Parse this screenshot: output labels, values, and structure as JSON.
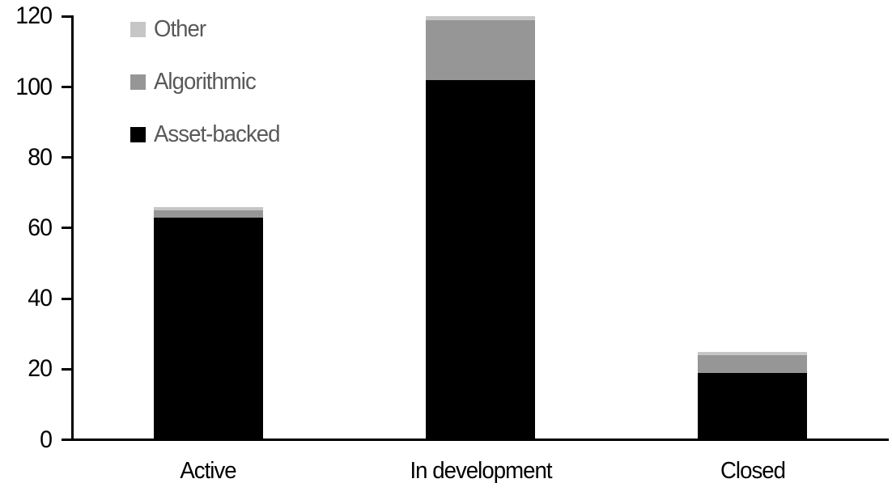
{
  "chart_data": {
    "type": "bar",
    "stacked": true,
    "title": "",
    "xlabel": "",
    "ylabel": "",
    "categories": [
      "Active",
      "In development",
      "Closed"
    ],
    "series": [
      {
        "name": "Other",
        "color": "#c6c6c6",
        "values": [
          1,
          1,
          1
        ]
      },
      {
        "name": "Algorithmic",
        "color": "#969696",
        "values": [
          2,
          17,
          5
        ]
      },
      {
        "name": "Asset-backed",
        "color": "#000000",
        "values": [
          63,
          102,
          19
        ]
      }
    ],
    "stack_order_bottom_to_top": [
      "Asset-backed",
      "Algorithmic",
      "Other"
    ],
    "totals": [
      66,
      120,
      25
    ],
    "ylim": [
      0,
      120
    ],
    "yticks": [
      0,
      20,
      40,
      60,
      80,
      100,
      120
    ],
    "grid": false,
    "legend_position": "top-left",
    "legend_order_top_to_bottom": [
      "Other",
      "Algorithmic",
      "Asset-backed"
    ],
    "colors": {
      "axis": "#000000",
      "tick_label": "#000000",
      "legend_text": "#595959",
      "background": "#ffffff"
    }
  }
}
